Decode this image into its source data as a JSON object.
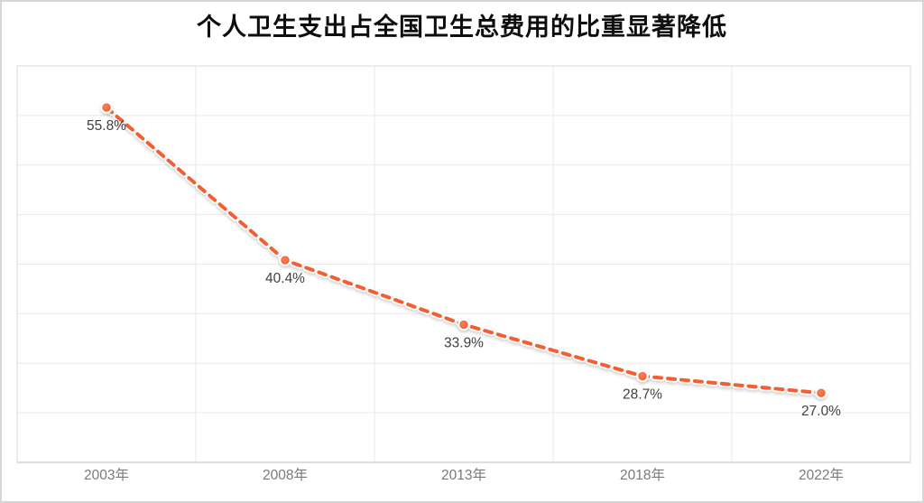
{
  "chart": {
    "title": "个人卫生支出占全国卫生总费用的比重显著降低"
  },
  "chart_data": {
    "type": "line",
    "title": "个人卫生支出占全国卫生总费用的比重显著降低",
    "categories": [
      "2003年",
      "2008年",
      "2013年",
      "2018年",
      "2022年"
    ],
    "values": [
      55.8,
      40.4,
      33.9,
      28.7,
      27.0
    ],
    "point_labels": [
      "55.8%",
      "40.4%",
      "33.9%",
      "28.7%",
      "27.0%"
    ],
    "series_name": "个人卫生支出占全国卫生总费用的比重",
    "xlabel": "",
    "ylabel": "",
    "ylim": [
      20,
      60
    ],
    "ytick_step": 5,
    "y_axis_labels_visible": false,
    "grid": "on",
    "legend": "none",
    "line_style": "dashed",
    "colors": {
      "line": "#f25f33",
      "marker_inner": "#f98155",
      "marker_edge": "#ef5a2c",
      "marker_ring": "#ffffff",
      "grid": "#e9e9e9",
      "plot_border": "#d9d9d9",
      "axis_line": "#d2d2d2",
      "data_label": "#404040",
      "tick_label": "#7a7a7a",
      "title": "#0d0d0d",
      "background": "#ffffff"
    }
  }
}
